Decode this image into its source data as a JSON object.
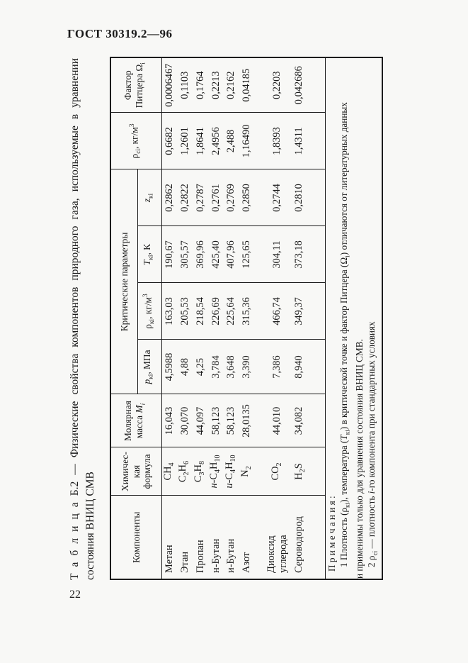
{
  "page": {
    "doc_header": "ГОСТ 30319.2—96",
    "page_number": "22"
  },
  "table": {
    "title_line1": "Т а б л и ц а   Б.2 — Физические свойства компонентов природного газа, используемые в уравнении",
    "title_line2": "состояния ВНИЦ СМВ",
    "headers": {
      "components": "Компоненты",
      "formula_html": "Химичес-<br>кая<br>формула",
      "molar_mass_html": "Молярная<br>масса <i>М<sub>i</sub></i>",
      "critical_params": "Критические параметры",
      "p_html": "<i>p</i><sub>кi</sub>, МПа",
      "rho_k_html": "ρ<sub>кi</sub>, кг/м<sup>3</sup>",
      "t_html": "<i>Т</i><sub>кi</sub>, К",
      "z_html": "<i>z</i><sub>кi</sub>",
      "rho_c_html": "ρ<sub>сi</sub>, кг/м<sup>3</sup>",
      "pitzer_html": "Фактор<br>Питцера Ω<sub>i</sub>"
    },
    "rows": [
      {
        "component_html": "Метан",
        "formula_html": "СН<sub>4</sub>",
        "molar_mass": "16,043",
        "p": "4,5988",
        "rho_k": "163,03",
        "t": "190,67",
        "z": "0,2862",
        "rho_c": "0,6682",
        "pitzer": "0,0006467"
      },
      {
        "component_html": "Этан",
        "formula_html": "С<sub>2</sub>Н<sub>6</sub>",
        "molar_mass": "30,070",
        "p": "4,88",
        "rho_k": "205,53",
        "t": "305,57",
        "z": "0,2822",
        "rho_c": "1,2601",
        "pitzer": "0,1103"
      },
      {
        "component_html": "Пропан",
        "formula_html": "С<sub>3</sub>Н<sub>8</sub>",
        "molar_mass": "44,097",
        "p": "4,25",
        "rho_k": "218,54",
        "t": "369,96",
        "z": "0,2787",
        "rho_c": "1,8641",
        "pitzer": "0,1764"
      },
      {
        "component_html": "н-Бутан",
        "formula_html": "<i>н</i>-С<sub>4</sub>Н<sub>10</sub>",
        "molar_mass": "58,123",
        "p": "3,784",
        "rho_k": "226,69",
        "t": "425,40",
        "z": "0,2761",
        "rho_c": "2,4956",
        "pitzer": "0,2213"
      },
      {
        "component_html": "и-Бутан",
        "formula_html": "<i>и</i>-С<sub>4</sub>Н<sub>10</sub>",
        "molar_mass": "58,123",
        "p": "3,648",
        "rho_k": "225,64",
        "t": "407,96",
        "z": "0,2769",
        "rho_c": "2,488",
        "pitzer": "0,2162"
      },
      {
        "component_html": "Азот",
        "formula_html": "N<sub>2</sub>",
        "molar_mass": "28,0135",
        "p": "3,390",
        "rho_k": "315,36",
        "t": "125,65",
        "z": "0,2850",
        "rho_c": "1,16490",
        "pitzer": "0,04185"
      },
      {
        "component_html": "Диоксид<br>углерода",
        "formula_html": "СО<sub>2</sub>",
        "molar_mass": "44,010",
        "p": "7,386",
        "rho_k": "466,74",
        "t": "304,11",
        "z": "0,2744",
        "rho_c": "1,8393",
        "pitzer": "0,2203"
      },
      {
        "component_html": "Сероводород",
        "formula_html": "Н<sub>2</sub>S",
        "molar_mass": "34,082",
        "p": "8,940",
        "rho_k": "349,37",
        "t": "373,18",
        "z": "0,2810",
        "rho_c": "1,4311",
        "pitzer": "0,042686"
      }
    ],
    "notes": {
      "heading": "П р и м е ч а н и я :",
      "note1_html": "1 Плотность (ρ<sub>кi</sub>), температура (<i>Т</i><sub>кi</sub>) в критической точке и фактор Питцера (Ω<sub>i</sub>) отличаются от литературных данных",
      "note1_cont": "и применимы только для уравнения состояния ВНИЦ СМВ.",
      "note2_html": "2 ρ<sub>сi</sub> — плотность <i>i</i>-го компонента при стандартных условиях"
    }
  }
}
